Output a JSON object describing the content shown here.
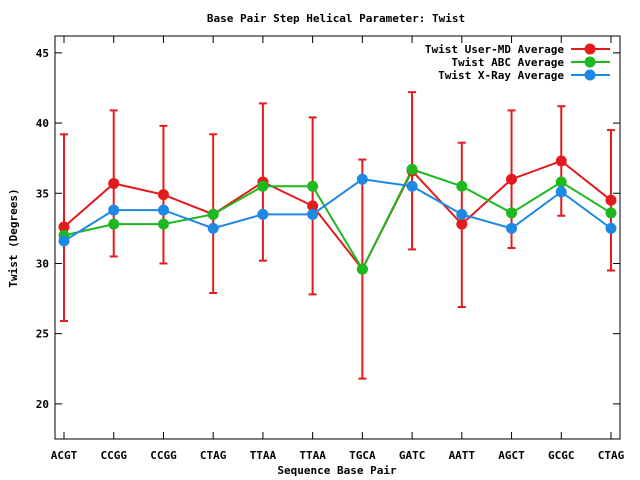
{
  "chart_data": {
    "type": "line",
    "title": "Base Pair Step Helical Parameter: Twist",
    "xlabel": "Sequence Base Pair",
    "ylabel": "Twist (Degrees)",
    "categories": [
      "ACGT",
      "CCGG",
      "CCGG",
      "CTAG",
      "TTAA",
      "TTAA",
      "TGCA",
      "GATC",
      "AATT",
      "AGCT",
      "GCGC",
      "CTAG"
    ],
    "ylim": [
      17.5,
      46.2
    ],
    "yticks": [
      20,
      25,
      30,
      35,
      40,
      45
    ],
    "grid": false,
    "legend_position": "top-right",
    "series": [
      {
        "name": "Twist User-MD Average",
        "color": "#e41a1c",
        "values": [
          32.6,
          35.7,
          34.9,
          33.5,
          35.8,
          34.1,
          29.6,
          36.6,
          32.8,
          36.0,
          37.3,
          34.5
        ],
        "error_low": [
          25.9,
          30.5,
          30.0,
          27.9,
          30.2,
          27.8,
          21.8,
          31.0,
          26.9,
          31.1,
          33.4,
          29.5
        ],
        "error_high": [
          39.2,
          40.9,
          39.8,
          39.2,
          41.4,
          40.4,
          37.4,
          42.2,
          38.6,
          40.9,
          41.2,
          39.5
        ]
      },
      {
        "name": "Twist ABC Average",
        "color": "#1eb91e",
        "values": [
          32.0,
          32.8,
          32.8,
          33.5,
          35.5,
          35.5,
          29.6,
          36.7,
          35.5,
          33.6,
          35.8,
          33.6
        ]
      },
      {
        "name": "Twist X-Ray Average",
        "color": "#1e88e5",
        "values": [
          31.6,
          33.8,
          33.8,
          32.5,
          33.5,
          33.5,
          36.0,
          35.5,
          33.5,
          32.5,
          35.1,
          32.5
        ]
      }
    ]
  }
}
